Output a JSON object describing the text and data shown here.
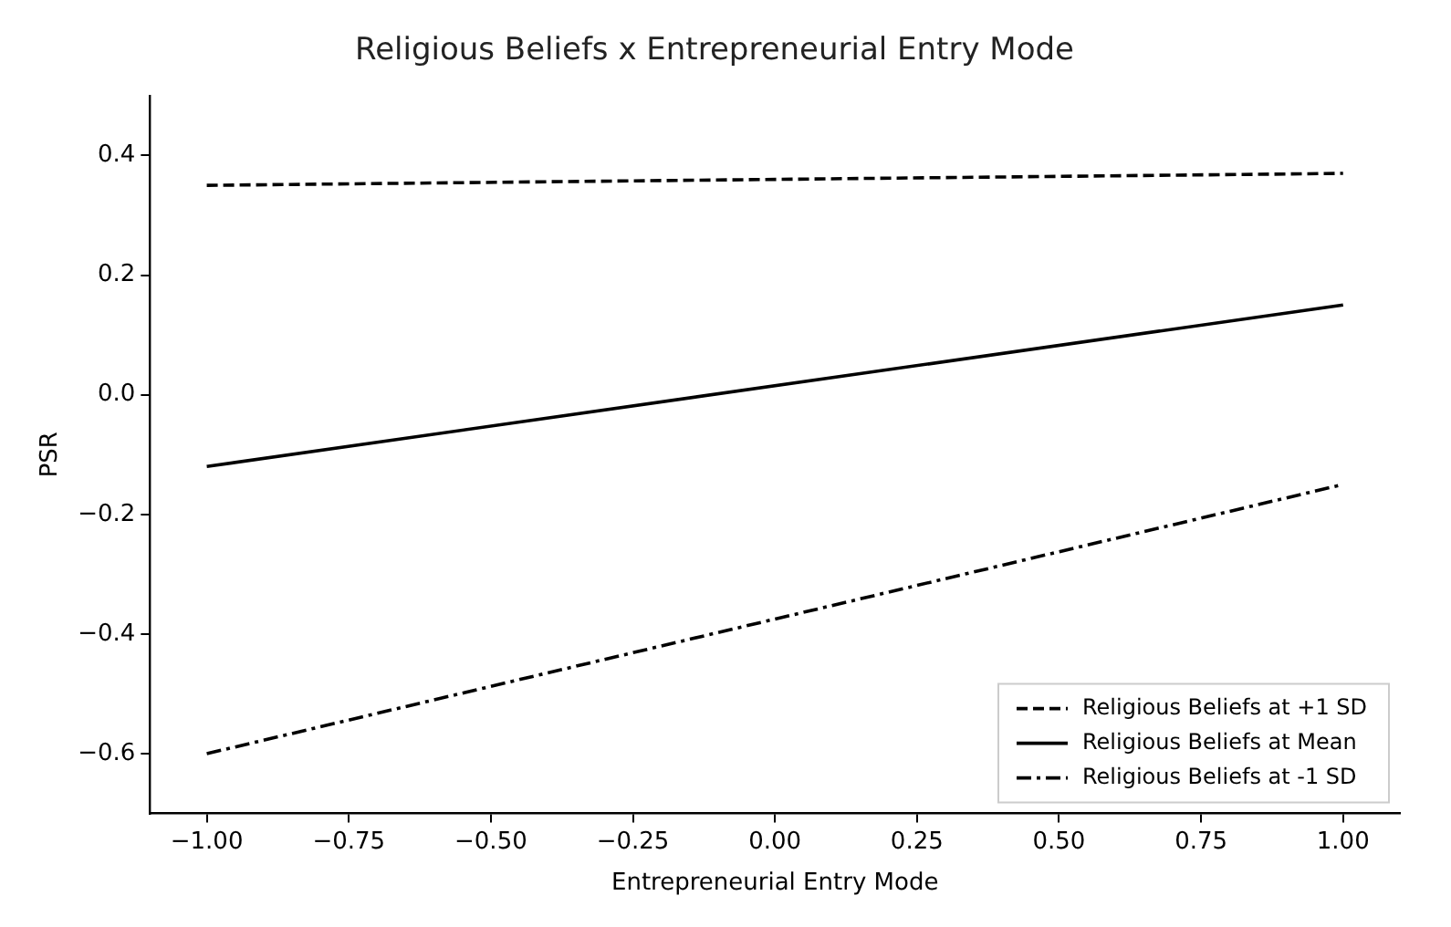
{
  "chart_data": {
    "type": "line",
    "title": "Religious Beliefs x Entrepreneurial Entry Mode",
    "xlabel": "Entrepreneurial Entry Mode",
    "ylabel": "PSR",
    "x": [
      -1,
      1
    ],
    "series": [
      {
        "name": "Religious Beliefs at +1 SD",
        "color": "#000000",
        "line_style": "dashed",
        "values": [
          0.35,
          0.37
        ]
      },
      {
        "name": "Religious Beliefs at Mean",
        "color": "#000000",
        "line_style": "solid",
        "values": [
          -0.12,
          0.15
        ]
      },
      {
        "name": "Religious Beliefs at -1 SD",
        "color": "#000000",
        "line_style": "dashdot",
        "values": [
          -0.6,
          -0.15
        ]
      }
    ],
    "xlim": [
      -1.1,
      1.1
    ],
    "ylim": [
      -0.7,
      0.5
    ],
    "xticks": [
      {
        "value": -1,
        "label": "−1.00"
      },
      {
        "value": -0.75,
        "label": "−0.75"
      },
      {
        "value": -0.5,
        "label": "−0.50"
      },
      {
        "value": -0.25,
        "label": "−0.25"
      },
      {
        "value": 0,
        "label": "0.00"
      },
      {
        "value": 0.25,
        "label": "0.25"
      },
      {
        "value": 0.5,
        "label": "0.50"
      },
      {
        "value": 0.75,
        "label": "0.75"
      },
      {
        "value": 1,
        "label": "1.00"
      }
    ],
    "yticks": [
      {
        "value": -0.6,
        "label": "−0.6"
      },
      {
        "value": -0.4,
        "label": "−0.4"
      },
      {
        "value": -0.2,
        "label": "−0.2"
      },
      {
        "value": 0,
        "label": "0.0"
      },
      0.2,
      0.4
    ],
    "grid": false,
    "legend": "bottom right",
    "marker": "none"
  }
}
